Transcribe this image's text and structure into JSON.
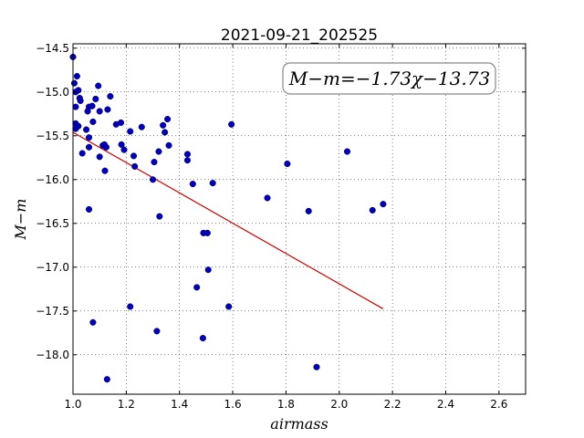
{
  "chart_data": {
    "type": "scatter",
    "title": "2021-09-21_202525",
    "xlabel": "airmass",
    "ylabel": "M−m",
    "xlim": [
      1.0,
      2.7
    ],
    "ylim": [
      -18.45,
      -14.45
    ],
    "y_inverted": true,
    "grid": true,
    "x_ticks": [
      1.0,
      1.2,
      1.4,
      1.6,
      1.8,
      2.0,
      2.2,
      2.4,
      2.6
    ],
    "x_tick_labels": [
      "1.0",
      "1.2",
      "1.4",
      "1.6",
      "1.8",
      "2.0",
      "2.2",
      "2.4",
      "2.6"
    ],
    "y_ticks": [
      -14.5,
      -15.0,
      -15.5,
      -16.0,
      -16.5,
      -17.0,
      -17.5,
      -18.0
    ],
    "y_tick_labels": [
      "−14.5",
      "−15.0",
      "−15.5",
      "−16.0",
      "−16.5",
      "−17.0",
      "−17.5",
      "−18.0"
    ],
    "annotation": "M−m=−1.73χ−13.73",
    "fit": {
      "slope": -1.73,
      "intercept": -13.73,
      "x_range": [
        1.0,
        2.165
      ],
      "color": "#cc0000"
    },
    "point_color": "#0000bb",
    "points": [
      {
        "x": 1.0,
        "y": -14.6
      },
      {
        "x": 1.005,
        "y": -14.9
      },
      {
        "x": 1.01,
        "y": -15.0
      },
      {
        "x": 1.015,
        "y": -14.82
      },
      {
        "x": 1.01,
        "y": -15.17
      },
      {
        "x": 1.02,
        "y": -14.98
      },
      {
        "x": 1.025,
        "y": -15.07
      },
      {
        "x": 1.028,
        "y": -15.1
      },
      {
        "x": 1.01,
        "y": -15.36
      },
      {
        "x": 1.02,
        "y": -15.39
      },
      {
        "x": 1.01,
        "y": -15.42
      },
      {
        "x": 1.035,
        "y": -15.7
      },
      {
        "x": 1.05,
        "y": -15.43
      },
      {
        "x": 1.055,
        "y": -15.22
      },
      {
        "x": 1.06,
        "y": -15.17
      },
      {
        "x": 1.06,
        "y": -15.63
      },
      {
        "x": 1.06,
        "y": -15.52
      },
      {
        "x": 1.072,
        "y": -15.16
      },
      {
        "x": 1.075,
        "y": -15.34
      },
      {
        "x": 1.085,
        "y": -15.08
      },
      {
        "x": 1.095,
        "y": -14.93
      },
      {
        "x": 1.1,
        "y": -15.22
      },
      {
        "x": 1.1,
        "y": -15.74
      },
      {
        "x": 1.112,
        "y": -15.61
      },
      {
        "x": 1.118,
        "y": -15.6
      },
      {
        "x": 1.125,
        "y": -15.63
      },
      {
        "x": 1.12,
        "y": -15.9
      },
      {
        "x": 1.13,
        "y": -15.2
      },
      {
        "x": 1.14,
        "y": -15.05
      },
      {
        "x": 1.162,
        "y": -15.37
      },
      {
        "x": 1.18,
        "y": -15.35
      },
      {
        "x": 1.182,
        "y": -15.6
      },
      {
        "x": 1.192,
        "y": -15.66
      },
      {
        "x": 1.215,
        "y": -15.45
      },
      {
        "x": 1.228,
        "y": -15.73
      },
      {
        "x": 1.232,
        "y": -15.85
      },
      {
        "x": 1.258,
        "y": -15.4
      },
      {
        "x": 1.3,
        "y": -16.0
      },
      {
        "x": 1.305,
        "y": -15.8
      },
      {
        "x": 1.322,
        "y": -15.68
      },
      {
        "x": 1.338,
        "y": -15.38
      },
      {
        "x": 1.345,
        "y": -15.46
      },
      {
        "x": 1.355,
        "y": -15.31
      },
      {
        "x": 1.36,
        "y": -15.61
      },
      {
        "x": 1.325,
        "y": -16.42
      },
      {
        "x": 1.43,
        "y": -15.71
      },
      {
        "x": 1.43,
        "y": -15.78
      },
      {
        "x": 1.45,
        "y": -16.05
      },
      {
        "x": 1.525,
        "y": -16.04
      },
      {
        "x": 1.595,
        "y": -15.37
      },
      {
        "x": 1.49,
        "y": -16.61
      },
      {
        "x": 1.505,
        "y": -16.61
      },
      {
        "x": 1.508,
        "y": -17.03
      },
      {
        "x": 1.465,
        "y": -17.23
      },
      {
        "x": 1.585,
        "y": -17.45
      },
      {
        "x": 1.488,
        "y": -17.81
      },
      {
        "x": 1.73,
        "y": -16.21
      },
      {
        "x": 1.805,
        "y": -15.82
      },
      {
        "x": 1.885,
        "y": -16.36
      },
      {
        "x": 1.915,
        "y": -18.14
      },
      {
        "x": 2.03,
        "y": -15.68
      },
      {
        "x": 2.125,
        "y": -16.35
      },
      {
        "x": 2.165,
        "y": -16.28
      },
      {
        "x": 1.06,
        "y": -16.34
      },
      {
        "x": 1.075,
        "y": -17.63
      },
      {
        "x": 1.128,
        "y": -18.28
      },
      {
        "x": 1.215,
        "y": -17.45
      },
      {
        "x": 1.315,
        "y": -17.73
      }
    ]
  }
}
